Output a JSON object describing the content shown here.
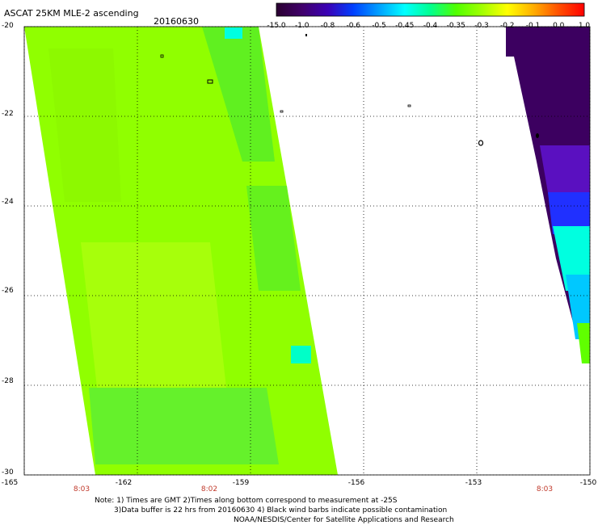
{
  "header": {
    "title": "ASCAT 25KM MLE-2 ascending",
    "date": "20160630"
  },
  "colorbar": {
    "labels": [
      "-15.0",
      "-1.0",
      "-0.8",
      "-0.6",
      "-0.5",
      "-0.45",
      "-0.4",
      "-0.35",
      "-0.3",
      "-0.2",
      "-0.1",
      "0.0",
      "1.0"
    ],
    "colors": [
      "#2a0030",
      "#40006a",
      "#3a00b5",
      "#0040ff",
      "#00a0ff",
      "#00ffff",
      "#00ff90",
      "#50ff00",
      "#a0ff00",
      "#ffff00",
      "#ffb000",
      "#ff5000",
      "#ff0000"
    ]
  },
  "axes": {
    "lat_labels": [
      "-20",
      "-22",
      "-24",
      "-26",
      "-28",
      "-30"
    ],
    "lon_labels": [
      "-165",
      "-162",
      "-159",
      "-156",
      "-153",
      "-150"
    ],
    "lat_range": [
      -30,
      -20
    ],
    "lon_range": [
      -165,
      -150
    ],
    "grid": true
  },
  "times": [
    "8:03",
    "8:02",
    "8:03"
  ],
  "notes": [
    "Note: 1) Times are GMT 2)Times along bottom correspond to measurement at -25S",
    "3)Data buffer is 22 hrs from 20160630 4) Black wind barbs indicate possible contamination",
    "NOAA/NESDIS/Center for Satellite Applications and Research"
  ],
  "colors": {
    "swath_main": "#90ff00",
    "swath_light": "#b8ff10",
    "swath_dark": "#50ee20",
    "cyan": "#00ffe0",
    "dark_purple": "#3c0060",
    "purple": "#5a10c0",
    "blue": "#1030ff"
  }
}
